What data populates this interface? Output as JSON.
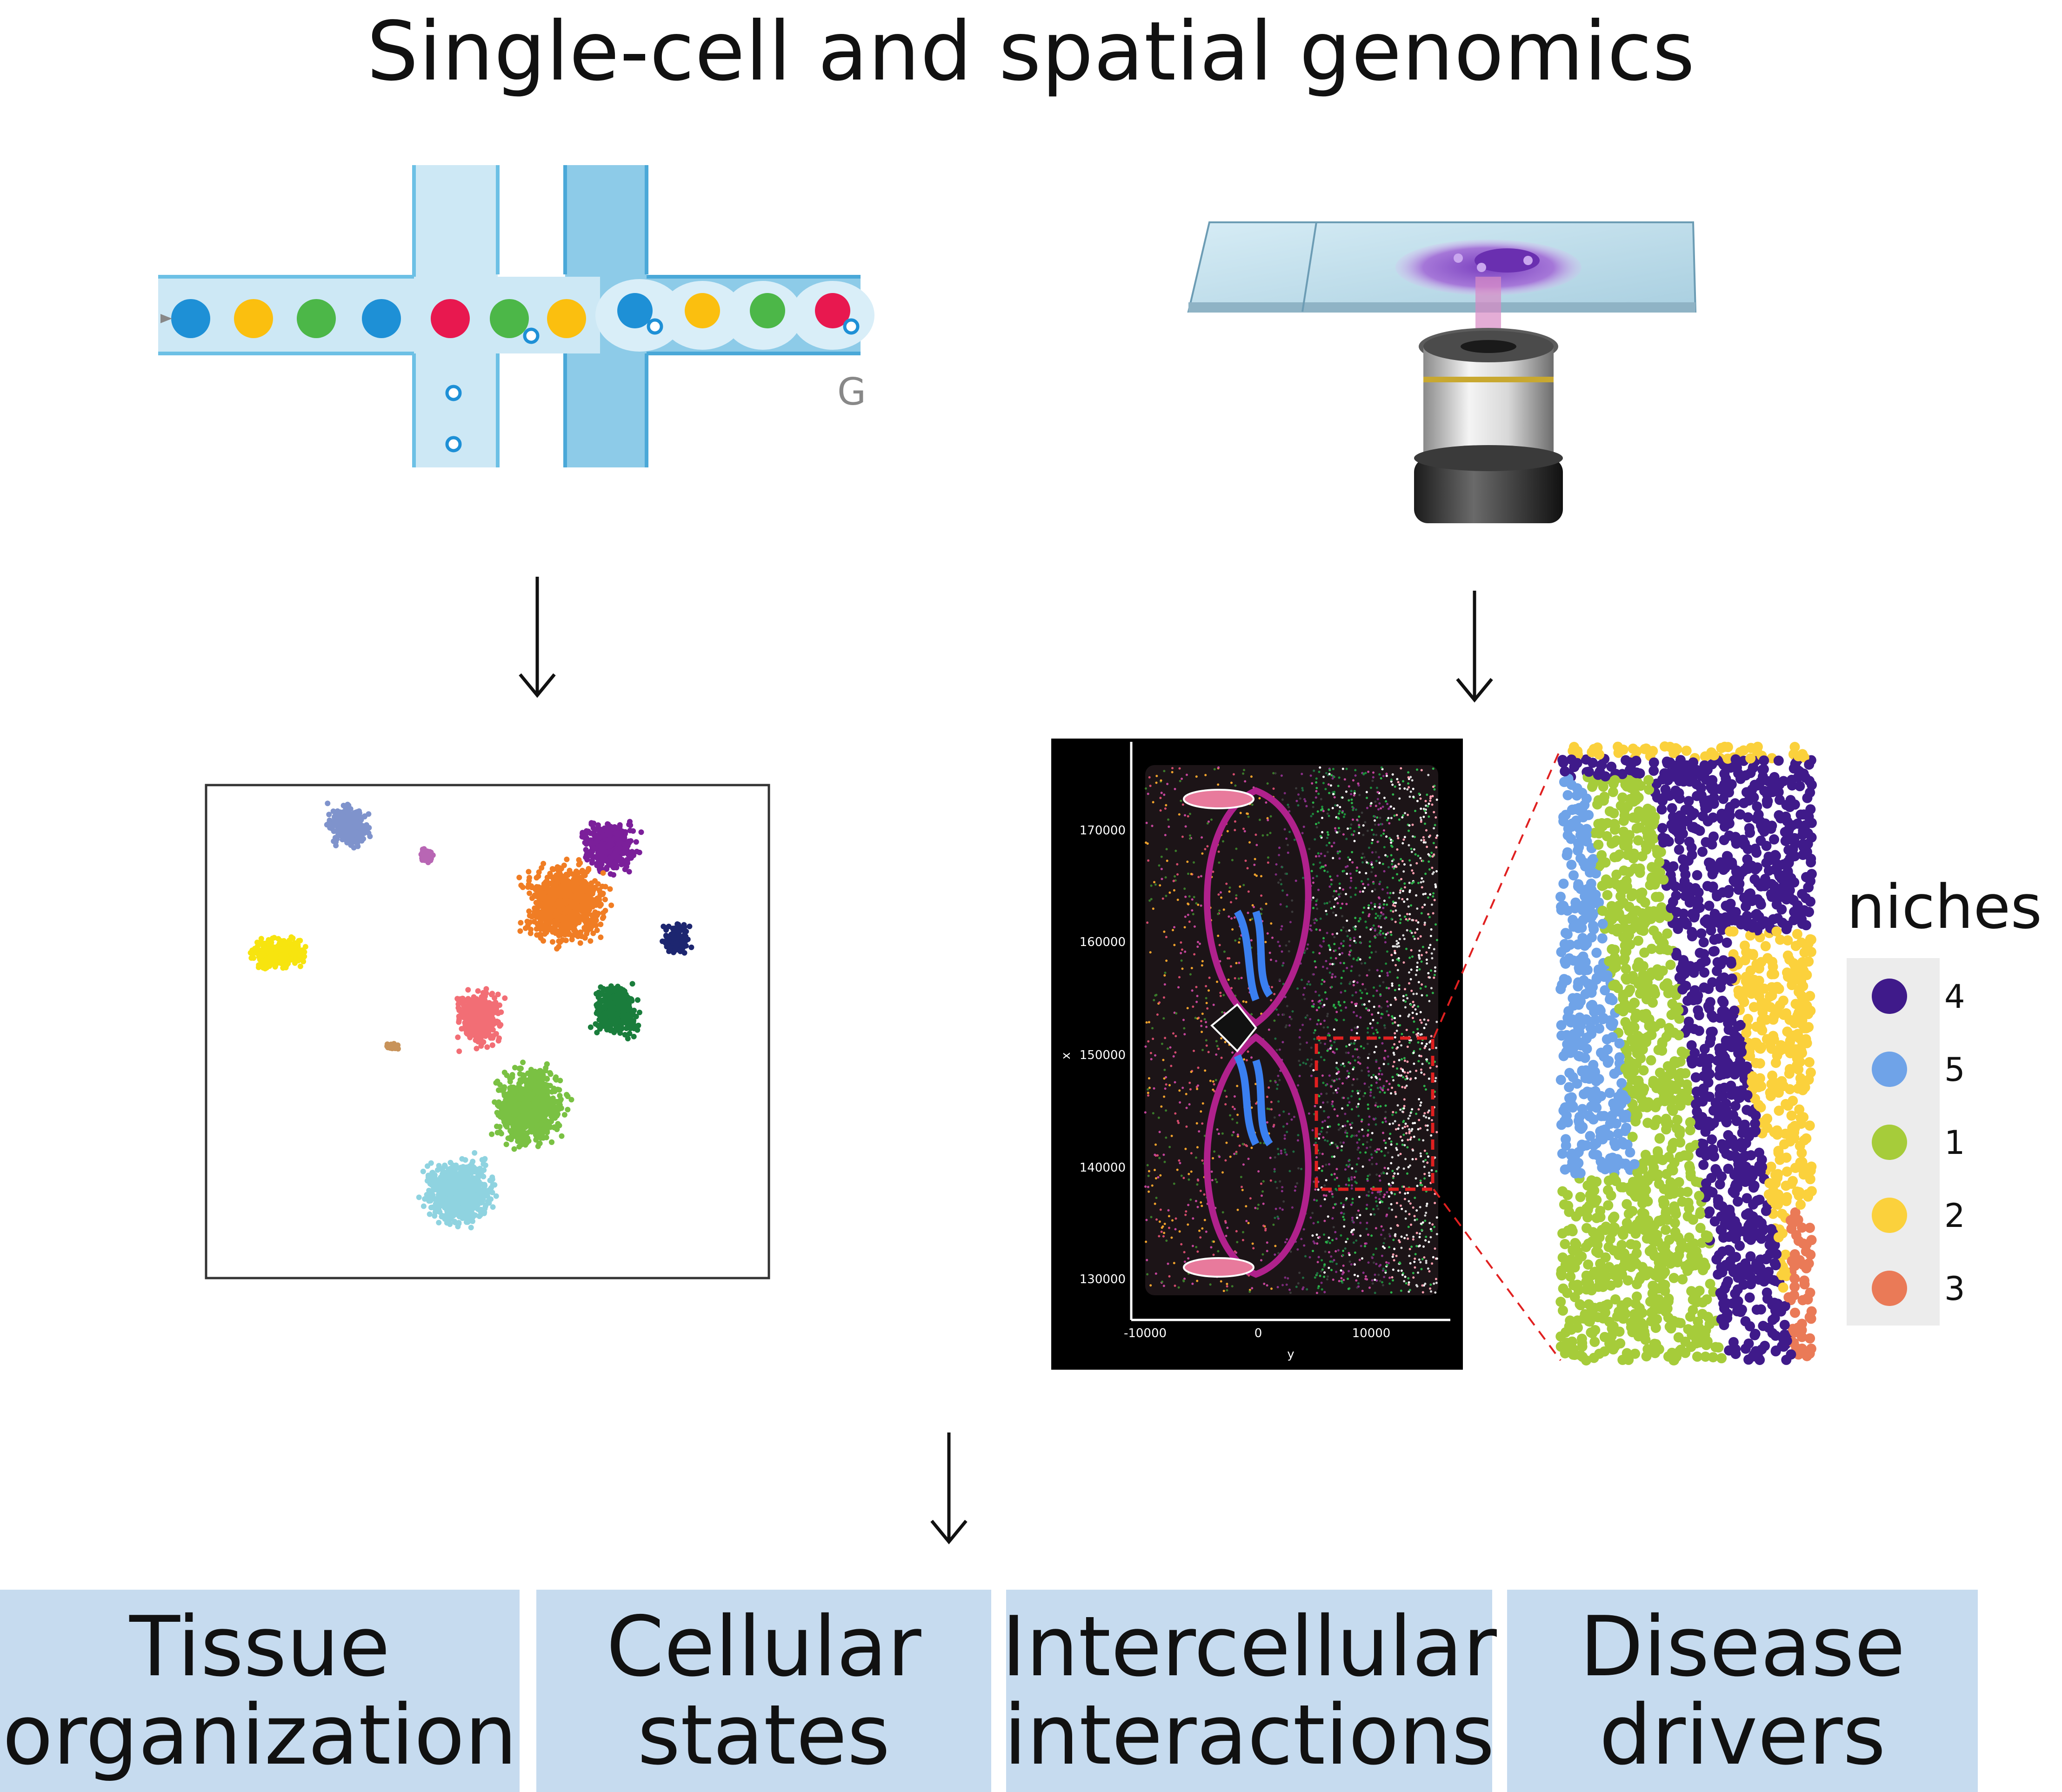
{
  "title": "Single-cell and spatial genomics",
  "microfluidics": {
    "letter": "G"
  },
  "spatial_plot": {
    "y_ticks": [
      "170000",
      "160000",
      "150000",
      "140000",
      "130000"
    ],
    "x_ticks": [
      "-10000",
      "0",
      "10000"
    ],
    "x_axis_label": "y",
    "y_axis_label": "x"
  },
  "legend": {
    "title": "niches",
    "items": [
      {
        "label": "4",
        "color": "#3f1a8a"
      },
      {
        "label": "5",
        "color": "#6fa3e8"
      },
      {
        "label": "1",
        "color": "#a6cc3a"
      },
      {
        "label": "2",
        "color": "#fbd13c"
      },
      {
        "label": "3",
        "color": "#ea7a57"
      }
    ]
  },
  "outcomes": [
    {
      "label": "Tissue\norganization"
    },
    {
      "label": "Cellular\nstates"
    },
    {
      "label": "Intercellular\ninteractions"
    },
    {
      "label": "Disease\ndrivers"
    }
  ]
}
